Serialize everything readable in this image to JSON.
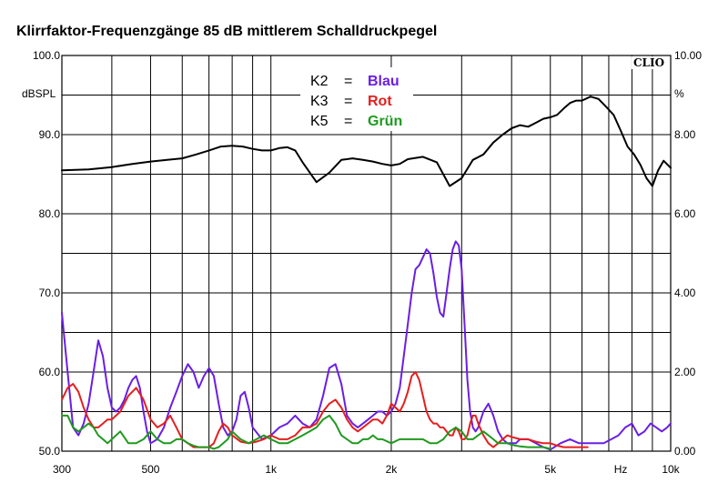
{
  "chart_data": {
    "type": "line",
    "title": "Klirrfaktor-Frequenzgänge 85 dB mittlerem Schalldruckpegel",
    "brand": "CLIO",
    "x_scale": "log",
    "xlim": [
      300,
      10000
    ],
    "x_ticks": [
      {
        "value": 300,
        "label": "300"
      },
      {
        "value": 500,
        "label": "500"
      },
      {
        "value": 1000,
        "label": "1k"
      },
      {
        "value": 2000,
        "label": "2k"
      },
      {
        "value": 5000,
        "label": "5k"
      },
      {
        "value": 7500,
        "label": "Hz"
      },
      {
        "value": 10000,
        "label": "10k"
      }
    ],
    "x_gridlines": [
      300,
      400,
      500,
      600,
      700,
      800,
      900,
      1000,
      2000,
      3000,
      4000,
      5000,
      6000,
      7000,
      8000,
      9000,
      10000
    ],
    "left_axis": {
      "unit": "dBSPL",
      "ylim": [
        50,
        100
      ],
      "ticks": [
        {
          "value": 100,
          "label": "100.0"
        },
        {
          "value": 90,
          "label": "90.0"
        },
        {
          "value": 80,
          "label": "80.0"
        },
        {
          "value": 70,
          "label": "70.0"
        },
        {
          "value": 60,
          "label": "60.0"
        },
        {
          "value": 50,
          "label": "50.0"
        }
      ]
    },
    "right_axis": {
      "unit": "%",
      "ylim": [
        0,
        10
      ],
      "ticks": [
        {
          "value": 10,
          "label": "10.00"
        },
        {
          "value": 8,
          "label": "8.00"
        },
        {
          "value": 6,
          "label": "6.00"
        },
        {
          "value": 4,
          "label": "4.00"
        },
        {
          "value": 2,
          "label": "2.00"
        },
        {
          "value": 0,
          "label": "0.00"
        }
      ]
    },
    "legend": [
      {
        "key": "K2",
        "eq": "=",
        "name": "Blau",
        "color": "#6a1ee6"
      },
      {
        "key": "K3",
        "eq": "=",
        "name": "Rot",
        "color": "#e61e1e"
      },
      {
        "key": "K5",
        "eq": "=",
        "name": "Grün",
        "color": "#1e9a1e"
      }
    ],
    "series": [
      {
        "id": "spl",
        "color": "#000000",
        "axis": "left",
        "x": [
          300,
          350,
          400,
          450,
          500,
          550,
          600,
          650,
          700,
          750,
          800,
          850,
          900,
          950,
          1000,
          1050,
          1100,
          1150,
          1200,
          1300,
          1400,
          1500,
          1600,
          1700,
          1800,
          1900,
          2000,
          2100,
          2200,
          2400,
          2600,
          2800,
          3000,
          3200,
          3400,
          3600,
          3800,
          4000,
          4200,
          4400,
          4600,
          4800,
          5000,
          5200,
          5400,
          5600,
          5800,
          6000,
          6300,
          6600,
          6900,
          7200,
          7500,
          7800,
          8100,
          8400,
          8700,
          9000,
          9300,
          9600,
          10000
        ],
        "y": [
          85.5,
          85.6,
          85.9,
          86.3,
          86.6,
          86.8,
          87.0,
          87.5,
          88.0,
          88.5,
          88.6,
          88.5,
          88.2,
          88.0,
          88.0,
          88.3,
          88.4,
          88.0,
          86.5,
          84.0,
          85.2,
          86.8,
          87.0,
          86.8,
          86.6,
          86.3,
          86.1,
          86.3,
          86.9,
          87.2,
          86.5,
          83.5,
          84.5,
          86.8,
          87.5,
          89.0,
          90.0,
          90.8,
          91.2,
          91.0,
          91.5,
          92.0,
          92.2,
          92.5,
          93.3,
          94.0,
          94.3,
          94.3,
          94.8,
          94.5,
          93.5,
          92.5,
          90.5,
          88.5,
          87.5,
          86.2,
          84.5,
          83.5,
          85.5,
          86.7,
          85.8
        ]
      },
      {
        "id": "k2",
        "color": "#6a1ee6",
        "axis": "left",
        "x": [
          300,
          310,
          320,
          330,
          340,
          350,
          360,
          370,
          380,
          390,
          400,
          410,
          420,
          430,
          440,
          450,
          460,
          470,
          480,
          490,
          500,
          520,
          540,
          560,
          580,
          600,
          620,
          640,
          660,
          680,
          700,
          720,
          740,
          760,
          780,
          800,
          820,
          840,
          860,
          880,
          900,
          950,
          1000,
          1050,
          1100,
          1150,
          1200,
          1250,
          1300,
          1350,
          1400,
          1450,
          1500,
          1550,
          1600,
          1650,
          1700,
          1750,
          1800,
          1850,
          1900,
          1950,
          2000,
          2050,
          2100,
          2150,
          2200,
          2250,
          2300,
          2350,
          2400,
          2450,
          2500,
          2550,
          2600,
          2650,
          2700,
          2750,
          2800,
          2850,
          2900,
          2950,
          3000,
          3050,
          3100,
          3150,
          3200,
          3250,
          3300,
          3400,
          3500,
          3600,
          3700,
          3800,
          3900,
          4000,
          4100,
          4200,
          4400,
          4600,
          4800,
          5000,
          5300,
          5600,
          5900,
          6200,
          6500,
          6800,
          7100,
          7400,
          7700,
          8000,
          8300,
          8600,
          8900,
          9200,
          9500,
          9800,
          10000
        ],
        "y": [
          67.5,
          60,
          53,
          52,
          53.5,
          56,
          60,
          64,
          62,
          58,
          55.5,
          55,
          55.5,
          56.5,
          58,
          59,
          59.5,
          58,
          55,
          52.5,
          51,
          51.5,
          53,
          55.5,
          57.5,
          59.5,
          61,
          60,
          58,
          59.5,
          60.5,
          59.5,
          56,
          53,
          52,
          52.5,
          54,
          57,
          57.5,
          55.5,
          53,
          51.5,
          52,
          53,
          53.5,
          54.5,
          53.5,
          53,
          54,
          57,
          60.5,
          61,
          58.5,
          54.5,
          53.5,
          53,
          53.5,
          54,
          54.5,
          55,
          55,
          54.5,
          55,
          56,
          58,
          62,
          66,
          70,
          73,
          73.5,
          74.5,
          75.5,
          75,
          72.5,
          69.5,
          67.5,
          67,
          70,
          73,
          75.5,
          76.5,
          76,
          73,
          66,
          59,
          55,
          53,
          52.5,
          53,
          55,
          56,
          54.5,
          52.5,
          51.5,
          51,
          51,
          51,
          51.5,
          51.5,
          51,
          50.5,
          50.2,
          51,
          51.5,
          51,
          51,
          51,
          51,
          51.5,
          52,
          53,
          53.5,
          52,
          52.5,
          53.5,
          53,
          52.5,
          53,
          53.5
        ]
      },
      {
        "id": "k3",
        "color": "#e61e1e",
        "axis": "left",
        "x": [
          300,
          310,
          320,
          330,
          340,
          350,
          360,
          370,
          380,
          390,
          400,
          420,
          440,
          460,
          480,
          500,
          520,
          540,
          560,
          580,
          600,
          620,
          640,
          660,
          680,
          700,
          720,
          740,
          760,
          780,
          800,
          840,
          880,
          920,
          960,
          1000,
          1050,
          1100,
          1150,
          1200,
          1250,
          1300,
          1350,
          1400,
          1450,
          1500,
          1550,
          1600,
          1650,
          1700,
          1750,
          1800,
          1850,
          1900,
          1950,
          2000,
          2050,
          2100,
          2150,
          2200,
          2250,
          2300,
          2350,
          2400,
          2450,
          2500,
          2550,
          2600,
          2650,
          2700,
          2750,
          2800,
          2850,
          2900,
          2950,
          3000,
          3050,
          3100,
          3150,
          3200,
          3250,
          3300,
          3400,
          3500,
          3600,
          3700,
          3800,
          3900,
          4000,
          4200,
          4400,
          4600,
          4800,
          5000,
          5200,
          5400,
          5600,
          5800,
          6000,
          6200
        ],
        "y": [
          56.5,
          58,
          58.5,
          57.5,
          55.5,
          54,
          53,
          53,
          53.5,
          54,
          54,
          55,
          57,
          58,
          56.5,
          54,
          53,
          53.5,
          54.5,
          53,
          51.5,
          51,
          50.5,
          50.5,
          50.5,
          50.5,
          51,
          52.5,
          53.5,
          53,
          52,
          51.2,
          51,
          51.2,
          51.5,
          52,
          51.5,
          51.5,
          52,
          53,
          53,
          53.5,
          55,
          56,
          56.5,
          55.5,
          54,
          53,
          52.5,
          53,
          53.5,
          54,
          54,
          53.5,
          54.5,
          56,
          55.5,
          55,
          56,
          57.5,
          59.5,
          60,
          59,
          57,
          55,
          54,
          53.5,
          53.5,
          53,
          53,
          52.5,
          52,
          52,
          53,
          52.5,
          51.5,
          51.5,
          52,
          53.5,
          54.5,
          54.5,
          53.5,
          52,
          51,
          50.5,
          51,
          51.5,
          52,
          51.8,
          51.5,
          51.5,
          51.2,
          51,
          51,
          50.7,
          50.5,
          50.5,
          50.5,
          50.5,
          50.5
        ]
      },
      {
        "id": "k5",
        "color": "#1e9a1e",
        "axis": "left",
        "x": [
          300,
          310,
          320,
          330,
          340,
          350,
          360,
          370,
          380,
          390,
          400,
          420,
          440,
          460,
          480,
          500,
          520,
          540,
          560,
          580,
          600,
          620,
          640,
          660,
          680,
          700,
          720,
          740,
          760,
          780,
          800,
          840,
          880,
          920,
          960,
          1000,
          1050,
          1100,
          1150,
          1200,
          1250,
          1300,
          1350,
          1400,
          1450,
          1500,
          1550,
          1600,
          1650,
          1700,
          1750,
          1800,
          1850,
          1900,
          2000,
          2100,
          2200,
          2300,
          2400,
          2500,
          2600,
          2700,
          2800,
          2900,
          3000,
          3100,
          3200,
          3300,
          3400,
          3500,
          3600,
          3700,
          3800,
          3900,
          4000,
          4200,
          4400,
          4600,
          4800,
          5000
        ],
        "y": [
          54.5,
          54.5,
          53,
          52.5,
          53,
          53.5,
          53,
          52,
          51.5,
          51,
          51.5,
          52.5,
          51,
          51,
          51.5,
          52.5,
          51.5,
          51,
          51,
          51.5,
          51.5,
          51,
          50.7,
          50.5,
          50.5,
          50.5,
          50.3,
          50.5,
          51,
          51.5,
          52.5,
          51.5,
          51,
          51.5,
          52,
          51.5,
          51,
          51,
          51.5,
          52,
          52.5,
          53,
          54,
          54.5,
          53.5,
          52,
          51.5,
          51,
          51,
          51.5,
          51.5,
          52,
          51.5,
          51.5,
          51,
          51.5,
          51.5,
          51.5,
          51.5,
          51,
          51,
          51.5,
          52.5,
          53,
          52.5,
          51.5,
          51.5,
          52,
          52.5,
          52,
          51.5,
          51,
          51,
          51,
          50.8,
          50.6,
          50.5,
          50.5,
          50.5,
          50.3
        ]
      }
    ]
  }
}
